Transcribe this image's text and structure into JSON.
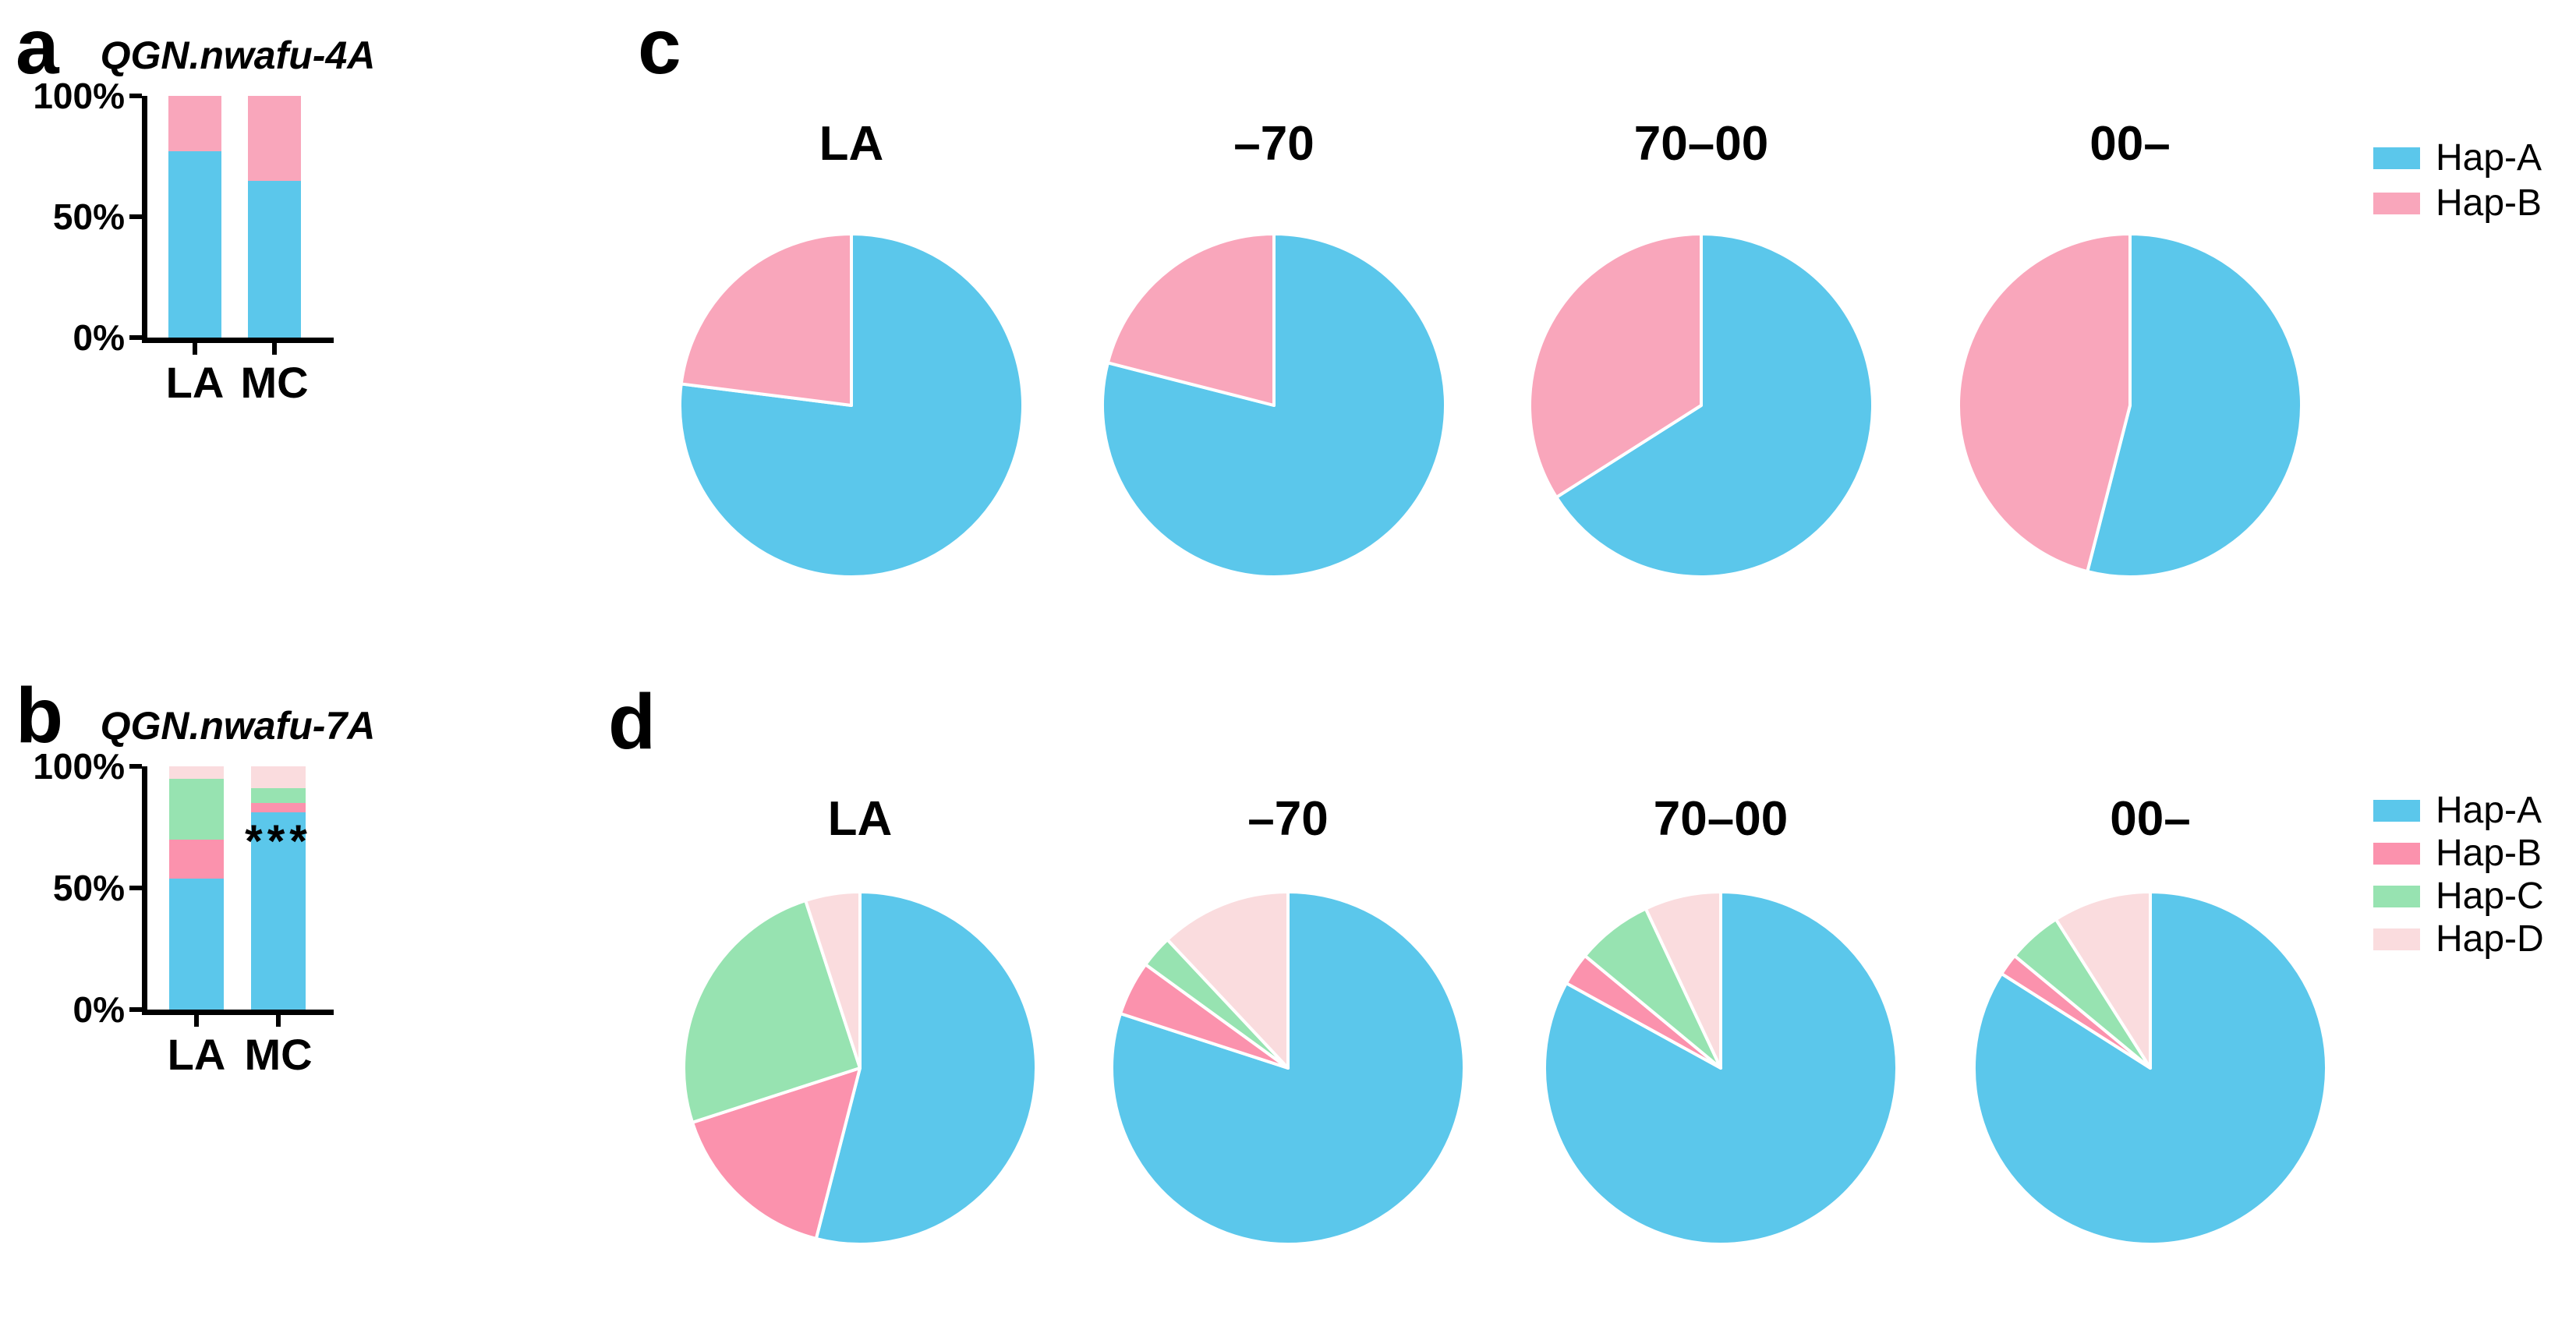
{
  "panels": {
    "a": {
      "letter": "a"
    },
    "b": {
      "letter": "b"
    },
    "c": {
      "letter": "c"
    },
    "d": {
      "letter": "d"
    }
  },
  "palette": {
    "hap_a_blue": "#5BC7EB",
    "hap_b_pink_light": "#F9A6BB",
    "hap_b_pink": "#FB92AD",
    "hap_c_green": "#97E3B1",
    "hap_d_rose": "#FADCDE"
  },
  "chart_data": [
    {
      "id": "a",
      "type": "bar",
      "stacked": true,
      "title": "QGN.nwafu-4A",
      "categories": [
        "LA",
        "MC"
      ],
      "yticks": [
        "0%",
        "50%",
        "100%"
      ],
      "ytick_values": [
        0,
        50,
        100
      ],
      "ylim": [
        0,
        100
      ],
      "grid": false,
      "series": [
        {
          "name": "Hap-A",
          "color": "#5BC7EB",
          "values": [
            77,
            65
          ]
        },
        {
          "name": "Hap-B",
          "color": "#F9A6BB",
          "values": [
            23,
            35
          ]
        }
      ]
    },
    {
      "id": "b",
      "type": "bar",
      "stacked": true,
      "title": "QGN.nwafu-7A",
      "categories": [
        "LA",
        "MC"
      ],
      "yticks": [
        "0%",
        "50%",
        "100%"
      ],
      "ytick_values": [
        0,
        50,
        100
      ],
      "ylim": [
        0,
        100
      ],
      "grid": false,
      "annotation": {
        "text": "***",
        "category": "MC"
      },
      "series": [
        {
          "name": "Hap-A",
          "color": "#5BC7EB",
          "values": [
            54,
            81
          ]
        },
        {
          "name": "Hap-B",
          "color": "#FB92AD",
          "values": [
            16,
            4
          ]
        },
        {
          "name": "Hap-C",
          "color": "#97E3B1",
          "values": [
            25,
            6
          ]
        },
        {
          "name": "Hap-D",
          "color": "#FADCDE",
          "values": [
            5,
            9
          ]
        }
      ]
    },
    {
      "id": "c",
      "type": "pie",
      "legend_position": "right",
      "series_names": [
        "Hap-A",
        "Hap-B"
      ],
      "colors": [
        "#5BC7EB",
        "#F9A6BB"
      ],
      "pies": [
        {
          "label": "LA",
          "values": [
            77,
            23
          ]
        },
        {
          "label": "–70",
          "values": [
            79,
            21
          ]
        },
        {
          "label": "70–00",
          "values": [
            66,
            34
          ]
        },
        {
          "label": "00–",
          "values": [
            54,
            46
          ]
        }
      ]
    },
    {
      "id": "d",
      "type": "pie",
      "legend_position": "right",
      "series_names": [
        "Hap-A",
        "Hap-B",
        "Hap-C",
        "Hap-D"
      ],
      "colors": [
        "#5BC7EB",
        "#FB92AD",
        "#97E3B1",
        "#FADCDE"
      ],
      "pies": [
        {
          "label": "LA",
          "values": [
            54,
            16,
            25,
            5
          ]
        },
        {
          "label": "–70",
          "values": [
            80,
            5,
            3,
            12
          ]
        },
        {
          "label": "70–00",
          "values": [
            83,
            3,
            7,
            7
          ]
        },
        {
          "label": "00–",
          "values": [
            84,
            2,
            5,
            9
          ]
        }
      ]
    }
  ]
}
